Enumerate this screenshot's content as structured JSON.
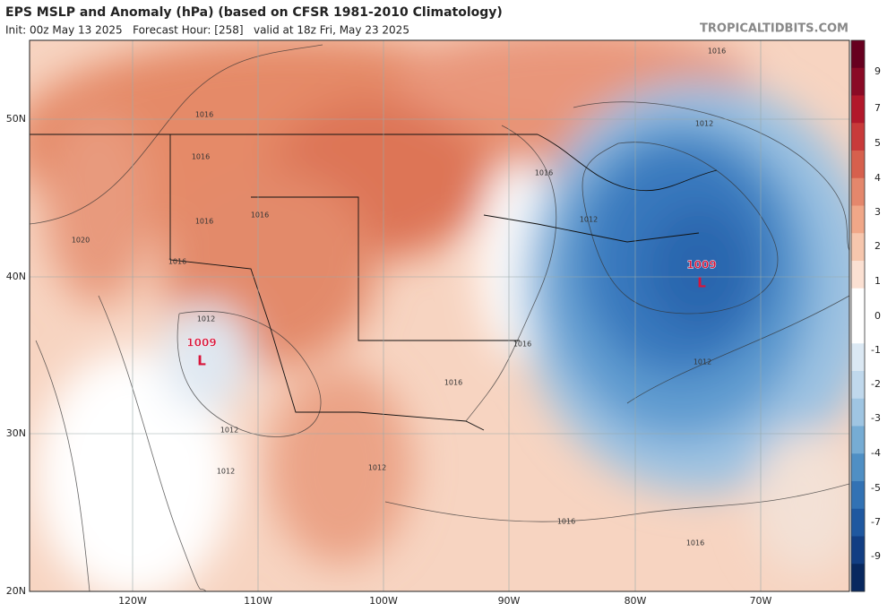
{
  "header": {
    "title": "EPS MSLP and Anomaly (hPa) (based on CFSR 1981-2010 Climatology)",
    "subtitle": "Init: 00z May 13 2025   Forecast Hour: [258]   valid at 18z Fri, May 23 2025",
    "site": "TROPICALTIDBITS.COM"
  },
  "map": {
    "lat_labels": [
      "50N",
      "40N",
      "30N",
      "20N"
    ],
    "lon_labels": [
      "120W",
      "110W",
      "100W",
      "90W",
      "80W",
      "70W"
    ],
    "contour_labels": [
      "1016",
      "1016",
      "1016",
      "1016",
      "1016",
      "1020",
      "1016",
      "1012",
      "1016",
      "1012",
      "1016",
      "1012",
      "1016",
      "1012",
      "1012",
      "1012",
      "1012",
      "1016",
      "1016"
    ],
    "lows": [
      {
        "pressure": "1009",
        "symbol": "L"
      },
      {
        "pressure": "1009",
        "symbol": "L"
      }
    ]
  },
  "colorbar": {
    "ticks": [
      "9",
      "7",
      "5",
      "4",
      "3",
      "2",
      "1",
      "0",
      "-1",
      "-2",
      "-3",
      "-4",
      "-5",
      "-7",
      "-9"
    ]
  }
}
